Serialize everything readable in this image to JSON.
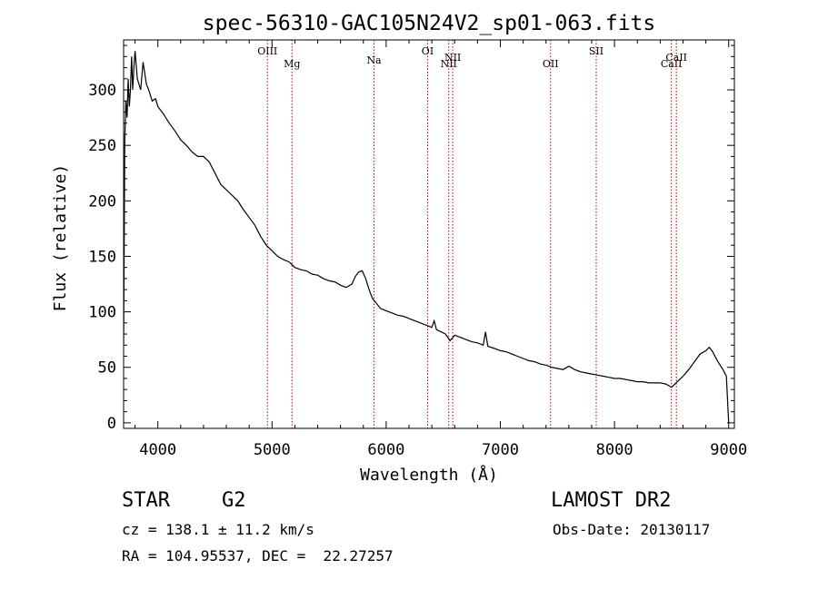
{
  "chart_data": {
    "type": "line",
    "title": "spec-56310-GAC105N24V2_sp01-063.fits",
    "xlabel": "Wavelength (Å)",
    "ylabel": "Flux (relative)",
    "xlim": [
      3700,
      9050
    ],
    "ylim": [
      -5,
      345
    ],
    "x_ticks": [
      4000,
      5000,
      6000,
      7000,
      8000,
      9000
    ],
    "y_ticks": [
      0,
      50,
      100,
      150,
      200,
      250,
      300
    ],
    "grid": false,
    "line_color": "#000000",
    "marker_color": "#c00000",
    "series": [
      {
        "points": [
          [
            3700,
            70
          ],
          [
            3710,
            255
          ],
          [
            3720,
            290
          ],
          [
            3730,
            275
          ],
          [
            3740,
            310
          ],
          [
            3750,
            285
          ],
          [
            3760,
            300
          ],
          [
            3770,
            330
          ],
          [
            3780,
            300
          ],
          [
            3790,
            320
          ],
          [
            3800,
            335
          ],
          [
            3820,
            310
          ],
          [
            3850,
            300
          ],
          [
            3870,
            325
          ],
          [
            3900,
            305
          ],
          [
            3920,
            300
          ],
          [
            3950,
            290
          ],
          [
            3980,
            292
          ],
          [
            4000,
            285
          ],
          [
            4050,
            278
          ],
          [
            4100,
            270
          ],
          [
            4150,
            263
          ],
          [
            4200,
            255
          ],
          [
            4250,
            250
          ],
          [
            4300,
            244
          ],
          [
            4350,
            240
          ],
          [
            4400,
            240
          ],
          [
            4450,
            235
          ],
          [
            4500,
            225
          ],
          [
            4550,
            215
          ],
          [
            4600,
            210
          ],
          [
            4650,
            205
          ],
          [
            4700,
            200
          ],
          [
            4750,
            192
          ],
          [
            4800,
            185
          ],
          [
            4850,
            178
          ],
          [
            4900,
            168
          ],
          [
            4950,
            160
          ],
          [
            5000,
            155
          ],
          [
            5050,
            150
          ],
          [
            5100,
            147
          ],
          [
            5150,
            145
          ],
          [
            5200,
            140
          ],
          [
            5250,
            138
          ],
          [
            5300,
            137
          ],
          [
            5350,
            134
          ],
          [
            5400,
            133
          ],
          [
            5450,
            130
          ],
          [
            5500,
            128
          ],
          [
            5550,
            127
          ],
          [
            5600,
            124
          ],
          [
            5650,
            122
          ],
          [
            5700,
            125
          ],
          [
            5730,
            132
          ],
          [
            5760,
            136
          ],
          [
            5790,
            137
          ],
          [
            5820,
            130
          ],
          [
            5850,
            120
          ],
          [
            5880,
            112
          ],
          [
            5920,
            107
          ],
          [
            5950,
            103
          ],
          [
            6000,
            101
          ],
          [
            6050,
            99
          ],
          [
            6100,
            97
          ],
          [
            6150,
            96
          ],
          [
            6200,
            94
          ],
          [
            6250,
            92
          ],
          [
            6300,
            90
          ],
          [
            6350,
            88
          ],
          [
            6400,
            86
          ],
          [
            6420,
            92
          ],
          [
            6440,
            84
          ],
          [
            6480,
            82
          ],
          [
            6520,
            80
          ],
          [
            6560,
            74
          ],
          [
            6600,
            79
          ],
          [
            6650,
            77
          ],
          [
            6700,
            75
          ],
          [
            6750,
            73
          ],
          [
            6800,
            72
          ],
          [
            6850,
            70
          ],
          [
            6870,
            82
          ],
          [
            6890,
            69
          ],
          [
            6950,
            67
          ],
          [
            7000,
            65
          ],
          [
            7050,
            64
          ],
          [
            7100,
            62
          ],
          [
            7150,
            60
          ],
          [
            7200,
            58
          ],
          [
            7250,
            56
          ],
          [
            7300,
            55
          ],
          [
            7350,
            53
          ],
          [
            7400,
            52
          ],
          [
            7450,
            50
          ],
          [
            7500,
            49
          ],
          [
            7550,
            48
          ],
          [
            7600,
            51
          ],
          [
            7650,
            48
          ],
          [
            7700,
            46
          ],
          [
            7750,
            45
          ],
          [
            7800,
            44
          ],
          [
            7850,
            43
          ],
          [
            7900,
            42
          ],
          [
            7950,
            41
          ],
          [
            8000,
            40
          ],
          [
            8050,
            40
          ],
          [
            8100,
            39
          ],
          [
            8150,
            38
          ],
          [
            8200,
            37
          ],
          [
            8250,
            37
          ],
          [
            8300,
            36
          ],
          [
            8350,
            36
          ],
          [
            8400,
            36
          ],
          [
            8450,
            35
          ],
          [
            8500,
            32
          ],
          [
            8550,
            37
          ],
          [
            8600,
            42
          ],
          [
            8650,
            48
          ],
          [
            8700,
            55
          ],
          [
            8750,
            62
          ],
          [
            8800,
            65
          ],
          [
            8830,
            68
          ],
          [
            8860,
            64
          ],
          [
            8900,
            56
          ],
          [
            8950,
            48
          ],
          [
            8980,
            42
          ],
          [
            9000,
            0
          ]
        ]
      }
    ],
    "lines": [
      {
        "label": "OIII",
        "x": 4960,
        "row": 1
      },
      {
        "label": "Mg",
        "x": 5175,
        "row": 2
      },
      {
        "label": "Na",
        "x": 5893,
        "row": 1.7
      },
      {
        "label": "OI",
        "x": 6363,
        "row": 1
      },
      {
        "label": "NII",
        "x": 6548,
        "row": 2
      },
      {
        "label": "NII",
        "x": 6583,
        "row": 1.5
      },
      {
        "label": "OII",
        "x": 7440,
        "row": 2
      },
      {
        "label": "SII",
        "x": 7840,
        "row": 1
      },
      {
        "label": "CaII",
        "x": 8498,
        "row": 2
      },
      {
        "label": "CaII",
        "x": 8542,
        "row": 1.5
      }
    ]
  },
  "info": {
    "object_class": "STAR",
    "subclass": "G2",
    "survey": "LAMOST DR2",
    "redshift_text": "cz = 138.1 ± 11.2 km/s",
    "obs_date_text": "Obs-Date: 20130117",
    "coords_text": "RA = 104.95537, DEC =  22.27257"
  }
}
